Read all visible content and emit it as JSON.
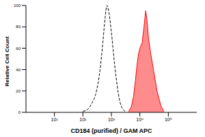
{
  "chart_data": {
    "type": "line",
    "xlabel": "CD184 (purified) / GAM APC",
    "ylabel": "Relative Cell Count",
    "log": "x",
    "xlim": [
      1,
      1000000
    ],
    "xticks": [
      {
        "value": 10,
        "label": "10¹"
      },
      {
        "value": 100,
        "label": "10²"
      },
      {
        "value": 1000,
        "label": "10³"
      },
      {
        "value": 10000,
        "label": "10⁴"
      },
      {
        "value": 100000,
        "label": "10⁵"
      }
    ],
    "ylim": [
      0,
      100
    ],
    "yticks": [
      0,
      20,
      40,
      60,
      80,
      100
    ],
    "series": [
      {
        "x": [
          100,
          150,
          200,
          300,
          400,
          500,
          600,
          700,
          800,
          1000,
          1300,
          1700,
          2200,
          3000
        ],
        "values": [
          1,
          3,
          8,
          20,
          40,
          65,
          88,
          100,
          95,
          75,
          45,
          20,
          6,
          1
        ],
        "color": "#000000",
        "line_style": "dashed"
      },
      {
        "type": "area",
        "x": [
          4000,
          5000,
          6000,
          7000,
          8000,
          9000,
          10000,
          12000,
          14000,
          16000,
          18000,
          20000,
          24000,
          30000,
          40000,
          55000,
          70000
        ],
        "values": [
          1,
          5,
          15,
          30,
          45,
          55,
          60,
          65,
          80,
          95,
          85,
          70,
          55,
          40,
          20,
          6,
          1
        ],
        "color": "#ff0000",
        "line_style": "solid"
      }
    ]
  }
}
